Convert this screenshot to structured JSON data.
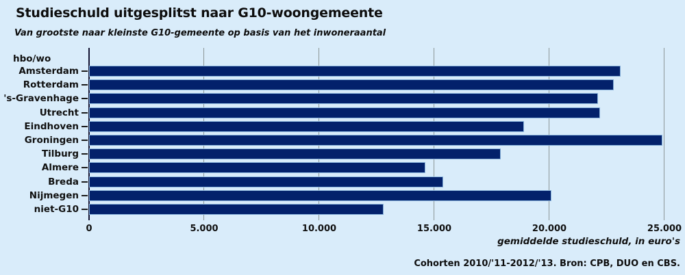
{
  "title": "Studieschuld uitgesplitst naar G10-woongemeente",
  "subtitle": "Van grootste naar kleinste G10-gemeente op basis van het inwoneraantal",
  "group_label": "hbo/wo",
  "source_note": "Cohorten 2010/'11-2012/'13. Bron: CPB, DUO en CBS.",
  "colors": {
    "background": "#d9ecfa",
    "bar_fill": "#03216b",
    "bar_border": "#8ab4dc",
    "gridline": "#8c9696",
    "axis_line": "#121232",
    "text": "#0d0d0d"
  },
  "chart_data": {
    "type": "bar",
    "orientation": "horizontal",
    "title": "Studieschuld uitgesplitst naar G10-woongemeente",
    "subtitle": "Van grootste naar kleinste G10-gemeente op basis van het inwoneraantal",
    "group_label": "hbo/wo",
    "categories": [
      "Amsterdam",
      "Rotterdam",
      "'s-Gravenhage",
      "Utrecht",
      "Eindhoven",
      "Groningen",
      "Tilburg",
      "Almere",
      "Breda",
      "Nijmegen",
      "niet-G10"
    ],
    "values": [
      23100,
      22800,
      22100,
      22200,
      18900,
      24900,
      17900,
      14600,
      15400,
      20100,
      12800
    ],
    "xlabel": "gemiddelde studieschuld, in euro's",
    "xlim": [
      0,
      25000
    ],
    "xticks": [
      0,
      5000,
      10000,
      15000,
      20000,
      25000
    ],
    "xtick_labels": [
      "0",
      "5.000",
      "10.000",
      "15.000",
      "20.000",
      "25.000"
    ],
    "grid": true,
    "legend": false,
    "source": "Cohorten 2010/'11-2012/'13. Bron: CPB, DUO en CBS."
  }
}
